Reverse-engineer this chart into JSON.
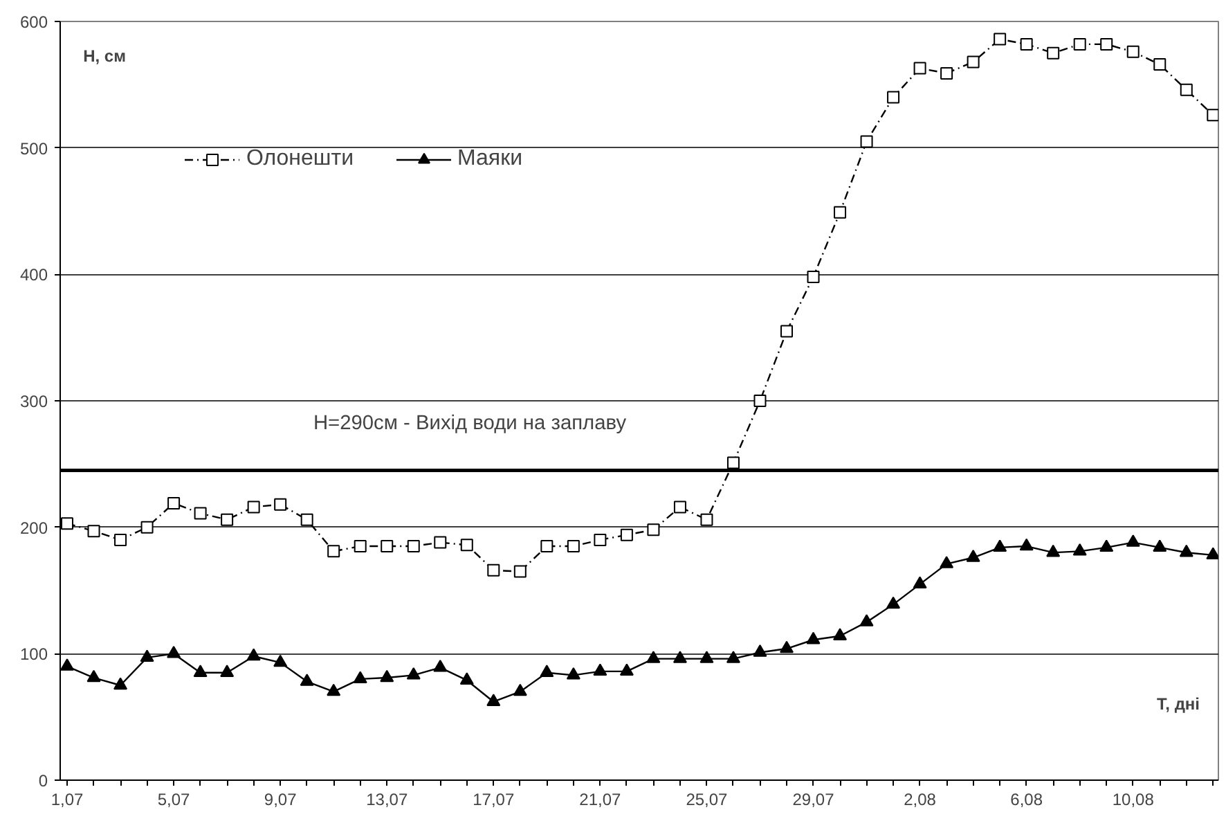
{
  "chart_data": {
    "type": "line",
    "xlabel": "Т, дні",
    "ylabel": "Н, см",
    "categories": [
      "1,07",
      null,
      null,
      null,
      "5,07",
      null,
      null,
      null,
      "9,07",
      null,
      null,
      null,
      "13,07",
      null,
      null,
      null,
      "17,07",
      null,
      null,
      null,
      "21,07",
      null,
      null,
      null,
      "25,07",
      null,
      null,
      null,
      "29,07",
      null,
      null,
      null,
      "2,08",
      null,
      null,
      null,
      "6,08",
      null,
      null,
      null,
      "10,08",
      null,
      null,
      null
    ],
    "series": [
      {
        "name": "Олонешти",
        "color": "#000000",
        "marker": "square",
        "line_style": "dashed",
        "values": [
          203,
          197,
          190,
          200,
          219,
          211,
          206,
          216,
          218,
          206,
          181,
          185,
          185,
          185,
          188,
          186,
          166,
          165,
          185,
          185,
          190,
          194,
          198,
          216,
          206,
          251,
          300,
          355,
          398,
          449,
          505,
          540,
          563,
          559,
          568,
          586,
          582,
          575,
          582,
          582,
          576,
          566,
          546,
          526
        ]
      },
      {
        "name": "Маяки",
        "color": "#000000",
        "marker": "triangle",
        "line_style": "solid",
        "values": [
          90,
          81,
          75,
          97,
          100,
          85,
          85,
          98,
          93,
          78,
          70,
          80,
          81,
          83,
          89,
          79,
          62,
          70,
          85,
          83,
          86,
          86,
          96,
          96,
          96,
          96,
          101,
          104,
          111,
          114,
          125,
          139,
          155,
          171,
          176,
          184,
          185,
          180,
          181,
          184,
          188,
          184,
          180,
          178
        ]
      }
    ],
    "ylim": [
      0,
      600
    ],
    "yticks": [
      0,
      100,
      200,
      300,
      400,
      500,
      600
    ],
    "ref_lines": [
      {
        "axis": "y",
        "value": 245,
        "color": "#000000"
      }
    ],
    "annotations": [
      "H=290см - Вихід води на заплаву"
    ],
    "grid": "y",
    "legend": "top left"
  }
}
